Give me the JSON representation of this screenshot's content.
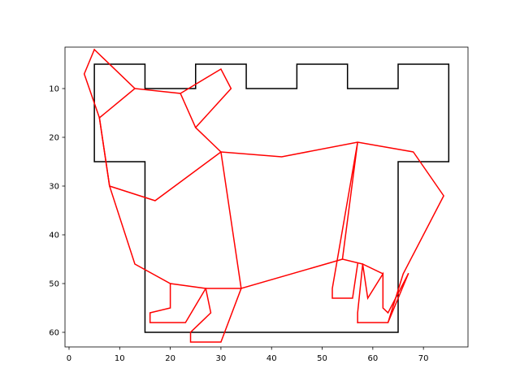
{
  "chart_data": {
    "type": "line",
    "title": "",
    "xlabel": "",
    "ylabel": "",
    "xlim": [
      -0.8,
      78.8
    ],
    "ylim": [
      63.0,
      1.5
    ],
    "y_inverted": true,
    "grid": false,
    "legend": "none",
    "x_ticks": [
      0,
      10,
      20,
      30,
      40,
      50,
      60,
      70
    ],
    "y_ticks": [
      10,
      20,
      30,
      40,
      50,
      60
    ],
    "x_tick_labels": [
      "0",
      "10",
      "20",
      "30",
      "40",
      "50",
      "60",
      "70"
    ],
    "y_tick_labels": [
      "10",
      "20",
      "30",
      "40",
      "50",
      "60"
    ],
    "series": [
      {
        "color": "#000000",
        "x": [
          5,
          15,
          15,
          25,
          25,
          35,
          35,
          45,
          45,
          55,
          55,
          65,
          65,
          75,
          75,
          65,
          65,
          15,
          15,
          5,
          5
        ],
        "y": [
          5,
          5,
          10,
          10,
          5,
          5,
          10,
          10,
          5,
          5,
          10,
          10,
          5,
          5,
          25,
          25,
          60,
          60,
          25,
          25,
          5
        ]
      },
      {
        "color": "#ff0000",
        "x": [
          5,
          3,
          6,
          13,
          5
        ],
        "y": [
          2,
          7,
          16,
          10,
          2
        ]
      },
      {
        "color": "#ff0000",
        "x": [
          6,
          8,
          17,
          30,
          42,
          57,
          68,
          74,
          66,
          63,
          67
        ],
        "y": [
          16,
          30,
          33,
          23,
          24,
          21,
          23,
          32,
          48,
          58,
          48
        ]
      },
      {
        "color": "#ff0000",
        "x": [
          13,
          22,
          25,
          30,
          34,
          27,
          28,
          24,
          24,
          30,
          34
        ],
        "y": [
          10,
          11,
          18,
          23,
          51,
          51,
          56,
          60,
          62,
          62,
          51
        ]
      },
      {
        "color": "#ff0000",
        "x": [
          22,
          30,
          32,
          25
        ],
        "y": [
          11,
          6,
          10,
          18
        ]
      },
      {
        "color": "#ff0000",
        "x": [
          6,
          8,
          13,
          20,
          27,
          23,
          16,
          16,
          20,
          20
        ],
        "y": [
          16,
          30,
          46,
          50,
          51,
          58,
          58,
          56,
          55,
          50
        ]
      },
      {
        "color": "#ff0000",
        "x": [
          34,
          54,
          57,
          52,
          52,
          56,
          57
        ],
        "y": [
          51,
          45,
          21,
          51,
          53,
          53,
          46
        ]
      },
      {
        "color": "#ff0000",
        "x": [
          54,
          58,
          59,
          62,
          62,
          63,
          67
        ],
        "y": [
          45,
          46,
          53,
          48,
          55,
          56,
          48
        ]
      },
      {
        "color": "#ff0000",
        "x": [
          62,
          58,
          57,
          57
        ],
        "y": [
          48,
          46,
          56,
          58
        ]
      },
      {
        "color": "#ff0000",
        "x": [
          57,
          63
        ],
        "y": [
          58,
          58
        ]
      }
    ]
  }
}
